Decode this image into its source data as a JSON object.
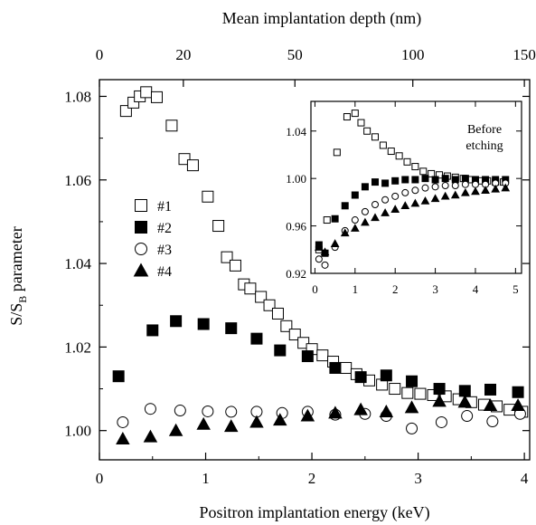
{
  "chart_data": {
    "type": "scatter",
    "xlabel": "Positron implantation energy (keV)",
    "ylabel": "S/S",
    "ylabel_subscript": "B",
    "ylabel_suffix": " parameter",
    "top_xlabel": "Mean implantation depth (nm)",
    "xlim": [
      0,
      4.05
    ],
    "ylim": [
      0.993,
      1.084
    ],
    "x_ticks": [
      0,
      1,
      2,
      3,
      4
    ],
    "x_tick_labels": [
      "0",
      "1",
      "2",
      "3",
      "4"
    ],
    "y_ticks": [
      1.0,
      1.02,
      1.04,
      1.06,
      1.08
    ],
    "y_tick_labels": [
      "1.00",
      "1.02",
      "1.04",
      "1.06",
      "1.08"
    ],
    "top_ticks": [
      {
        "label": "0",
        "energy": 0.0
      },
      {
        "label": "20",
        "energy": 0.79
      },
      {
        "label": "50",
        "energy": 1.84
      },
      {
        "label": "100",
        "energy": 2.95
      },
      {
        "label": "150",
        "energy": 4.0
      }
    ],
    "grid": false,
    "legend": "middle-left",
    "series": [
      {
        "name": "#1",
        "marker": "open-square",
        "x": [
          0.25,
          0.32,
          0.38,
          0.44,
          0.54,
          0.68,
          0.8,
          0.88,
          1.02,
          1.12,
          1.2,
          1.28,
          1.36,
          1.42,
          1.52,
          1.6,
          1.68,
          1.76,
          1.84,
          1.92,
          2.0,
          2.1,
          2.2,
          2.32,
          2.42,
          2.54,
          2.66,
          2.78,
          2.9,
          3.02,
          3.14,
          3.26,
          3.38,
          3.5,
          3.62,
          3.74,
          3.86,
          3.98
        ],
        "y": [
          1.0765,
          1.0785,
          1.08,
          1.081,
          1.0798,
          1.073,
          1.065,
          1.0635,
          1.056,
          1.049,
          1.0415,
          1.0395,
          1.035,
          1.034,
          1.032,
          1.03,
          1.028,
          1.025,
          1.023,
          1.021,
          1.0195,
          1.018,
          1.0165,
          1.015,
          1.0135,
          1.012,
          1.011,
          1.01,
          1.009,
          1.0088,
          1.0085,
          1.0082,
          1.0075,
          1.0068,
          1.0062,
          1.0058,
          1.005,
          1.0045
        ]
      },
      {
        "name": "#2",
        "marker": "filled-square",
        "x": [
          0.18,
          0.5,
          0.72,
          0.98,
          1.24,
          1.48,
          1.7,
          1.96,
          2.22,
          2.46,
          2.7,
          2.94,
          3.2,
          3.44,
          3.68,
          3.94
        ],
        "y": [
          1.013,
          1.024,
          1.0262,
          1.0255,
          1.0245,
          1.022,
          1.0192,
          1.0178,
          1.015,
          1.0128,
          1.0132,
          1.0118,
          1.01,
          1.0095,
          1.0098,
          1.0092
        ]
      },
      {
        "name": "#3",
        "marker": "open-circle",
        "x": [
          0.22,
          0.48,
          0.76,
          1.02,
          1.24,
          1.48,
          1.72,
          1.96,
          2.22,
          2.5,
          2.7,
          2.94,
          3.22,
          3.46,
          3.7,
          3.96
        ],
        "y": [
          1.002,
          1.0052,
          1.0048,
          1.0046,
          1.0045,
          1.0045,
          1.0042,
          1.0045,
          1.0038,
          1.004,
          1.0035,
          1.0005,
          1.002,
          1.0035,
          1.0022,
          1.004
        ]
      },
      {
        "name": "#4",
        "marker": "filled-triangle",
        "x": [
          0.22,
          0.48,
          0.72,
          0.98,
          1.24,
          1.48,
          1.7,
          1.96,
          2.22,
          2.46,
          2.7,
          2.94,
          3.2,
          3.44,
          3.68,
          3.94
        ],
        "y": [
          0.998,
          0.9985,
          1.0,
          1.0015,
          1.001,
          1.002,
          1.0025,
          1.0035,
          1.0042,
          1.005,
          1.0045,
          1.0055,
          1.007,
          1.0068,
          1.006,
          1.006
        ]
      }
    ],
    "inset": {
      "annotation": "Before\netching",
      "xlim": [
        -0.1,
        5.15
      ],
      "ylim": [
        0.92,
        1.065
      ],
      "x_ticks": [
        0,
        1,
        2,
        3,
        4,
        5
      ],
      "x_tick_labels": [
        "0",
        "1",
        "2",
        "3",
        "4",
        "5"
      ],
      "y_ticks": [
        0.92,
        0.96,
        1.0,
        1.04
      ],
      "y_tick_labels": [
        "0.92",
        "0.96",
        "1.00",
        "1.04"
      ],
      "series": [
        {
          "name": "#1",
          "marker": "open-square",
          "x": [
            0.1,
            0.3,
            0.55,
            0.8,
            1.0,
            1.15,
            1.3,
            1.5,
            1.7,
            1.9,
            2.1,
            2.3,
            2.5,
            2.7,
            2.9,
            3.1,
            3.3,
            3.5,
            3.7,
            3.9,
            4.1,
            4.3,
            4.5,
            4.7
          ],
          "y": [
            0.94,
            0.965,
            1.022,
            1.052,
            1.055,
            1.047,
            1.04,
            1.035,
            1.028,
            1.023,
            1.019,
            1.014,
            1.01,
            1.006,
            1.004,
            1.003,
            1.002,
            1.001,
            1.0,
            0.999,
            0.998,
            0.998,
            0.997,
            0.997
          ]
        },
        {
          "name": "#2",
          "marker": "filled-square",
          "x": [
            0.1,
            0.25,
            0.5,
            0.75,
            1.0,
            1.25,
            1.5,
            1.75,
            2.0,
            2.25,
            2.5,
            2.75,
            3.0,
            3.25,
            3.5,
            3.75,
            4.0,
            4.25,
            4.5,
            4.75
          ],
          "y": [
            0.944,
            0.937,
            0.966,
            0.977,
            0.986,
            0.993,
            0.997,
            0.996,
            0.998,
            0.999,
            0.999,
            1.0,
            0.999,
            1.0,
            0.999,
            1.0,
            0.999,
            0.999,
            0.999,
            0.999
          ]
        },
        {
          "name": "#3",
          "marker": "open-circle",
          "x": [
            0.1,
            0.25,
            0.5,
            0.75,
            1.0,
            1.25,
            1.5,
            1.75,
            2.0,
            2.25,
            2.5,
            2.75,
            3.0,
            3.25,
            3.5,
            3.75,
            4.0,
            4.25,
            4.5,
            4.75
          ],
          "y": [
            0.932,
            0.927,
            0.942,
            0.956,
            0.965,
            0.972,
            0.978,
            0.982,
            0.985,
            0.988,
            0.99,
            0.992,
            0.993,
            0.994,
            0.994,
            0.995,
            0.995,
            0.995,
            0.996,
            0.996
          ]
        },
        {
          "name": "#4",
          "marker": "filled-triangle",
          "x": [
            0.1,
            0.25,
            0.5,
            0.75,
            1.0,
            1.25,
            1.5,
            1.75,
            2.0,
            2.25,
            2.5,
            2.75,
            3.0,
            3.25,
            3.5,
            3.75,
            4.0,
            4.25,
            4.5,
            4.75
          ],
          "y": [
            0.942,
            0.938,
            0.945,
            0.954,
            0.958,
            0.963,
            0.967,
            0.971,
            0.974,
            0.977,
            0.979,
            0.981,
            0.983,
            0.985,
            0.986,
            0.988,
            0.989,
            0.99,
            0.991,
            0.992
          ]
        }
      ]
    }
  }
}
